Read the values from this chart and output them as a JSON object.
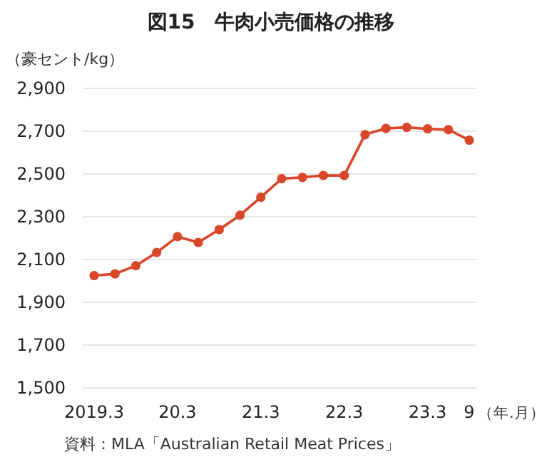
{
  "chart_data": {
    "type": "line",
    "title": "図15　牛肉小売価格の推移",
    "ylabel": "（豪セント/kg）",
    "xlabel": "（年.月）",
    "categories": [
      "2019.3",
      null,
      null,
      null,
      "20.3",
      null,
      null,
      null,
      "21.3",
      null,
      null,
      null,
      "22.3",
      null,
      null,
      null,
      "23.3",
      null,
      "9"
    ],
    "series": [
      {
        "color": "#d9472b",
        "values": [
          2025,
          2033,
          2071,
          2133,
          2207,
          2180,
          2240,
          2307,
          2391,
          2478,
          2484,
          2493,
          2493,
          2684,
          2713,
          2718,
          2711,
          2707,
          2658
        ]
      }
    ],
    "ylim": [
      1500,
      2900
    ],
    "yticks": [
      {
        "value": 1500,
        "label": "1,500"
      },
      {
        "value": 1700,
        "label": "1,700"
      },
      {
        "value": 1900,
        "label": "1,900"
      },
      {
        "value": 2100,
        "label": "2,100"
      },
      {
        "value": 2300,
        "label": "2,300"
      },
      {
        "value": 2500,
        "label": "2,500"
      },
      {
        "value": 2700,
        "label": "2,700"
      },
      {
        "value": 2900,
        "label": "2,900"
      }
    ],
    "grid": "y",
    "marker": "circle",
    "line_style": "solid",
    "annotations": [
      "資料：MLA「Australian Retail Meat Prices」"
    ]
  }
}
